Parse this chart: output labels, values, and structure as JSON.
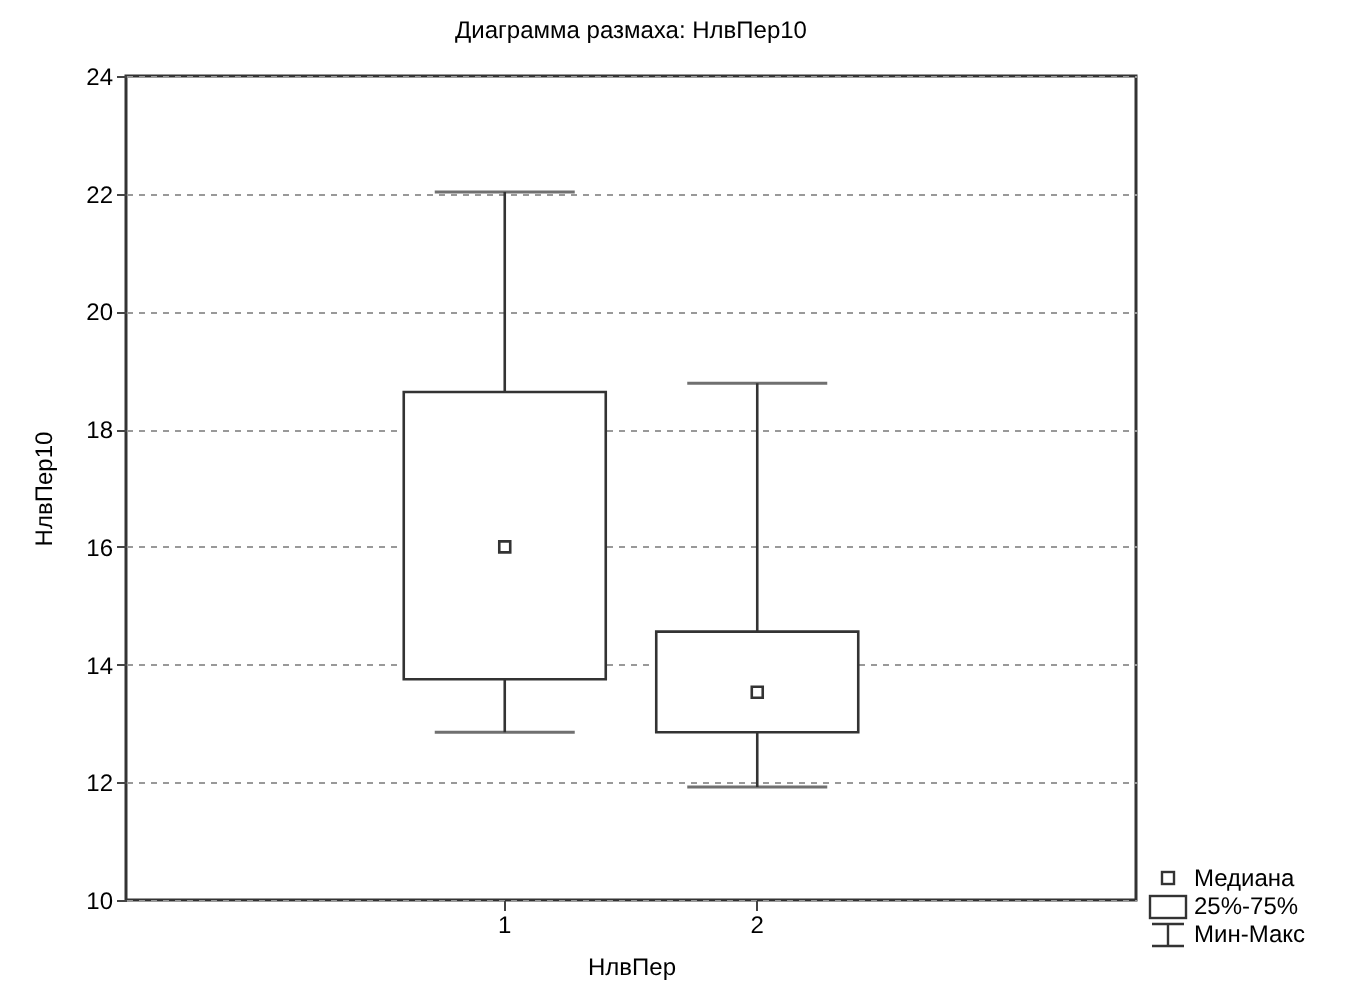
{
  "chart_data": {
    "type": "box",
    "title": "Диаграмма размаха: НлвПер10",
    "xlabel": "НлвПер",
    "ylabel": "НлвПер10",
    "categories": [
      "1",
      "2"
    ],
    "boxes": [
      {
        "low": 12.85,
        "q1": 13.75,
        "median": 16.0,
        "q3": 18.63,
        "high": 22.03
      },
      {
        "low": 11.92,
        "q1": 12.85,
        "median": 13.53,
        "q3": 14.56,
        "high": 18.78
      }
    ],
    "ylim": [
      10,
      24
    ],
    "yticks": [
      10,
      12,
      14,
      16,
      18,
      20,
      22,
      24
    ],
    "grid": "y",
    "annotations": [
      "Медиана",
      "25%-75%",
      "Мин-Макс"
    ]
  }
}
